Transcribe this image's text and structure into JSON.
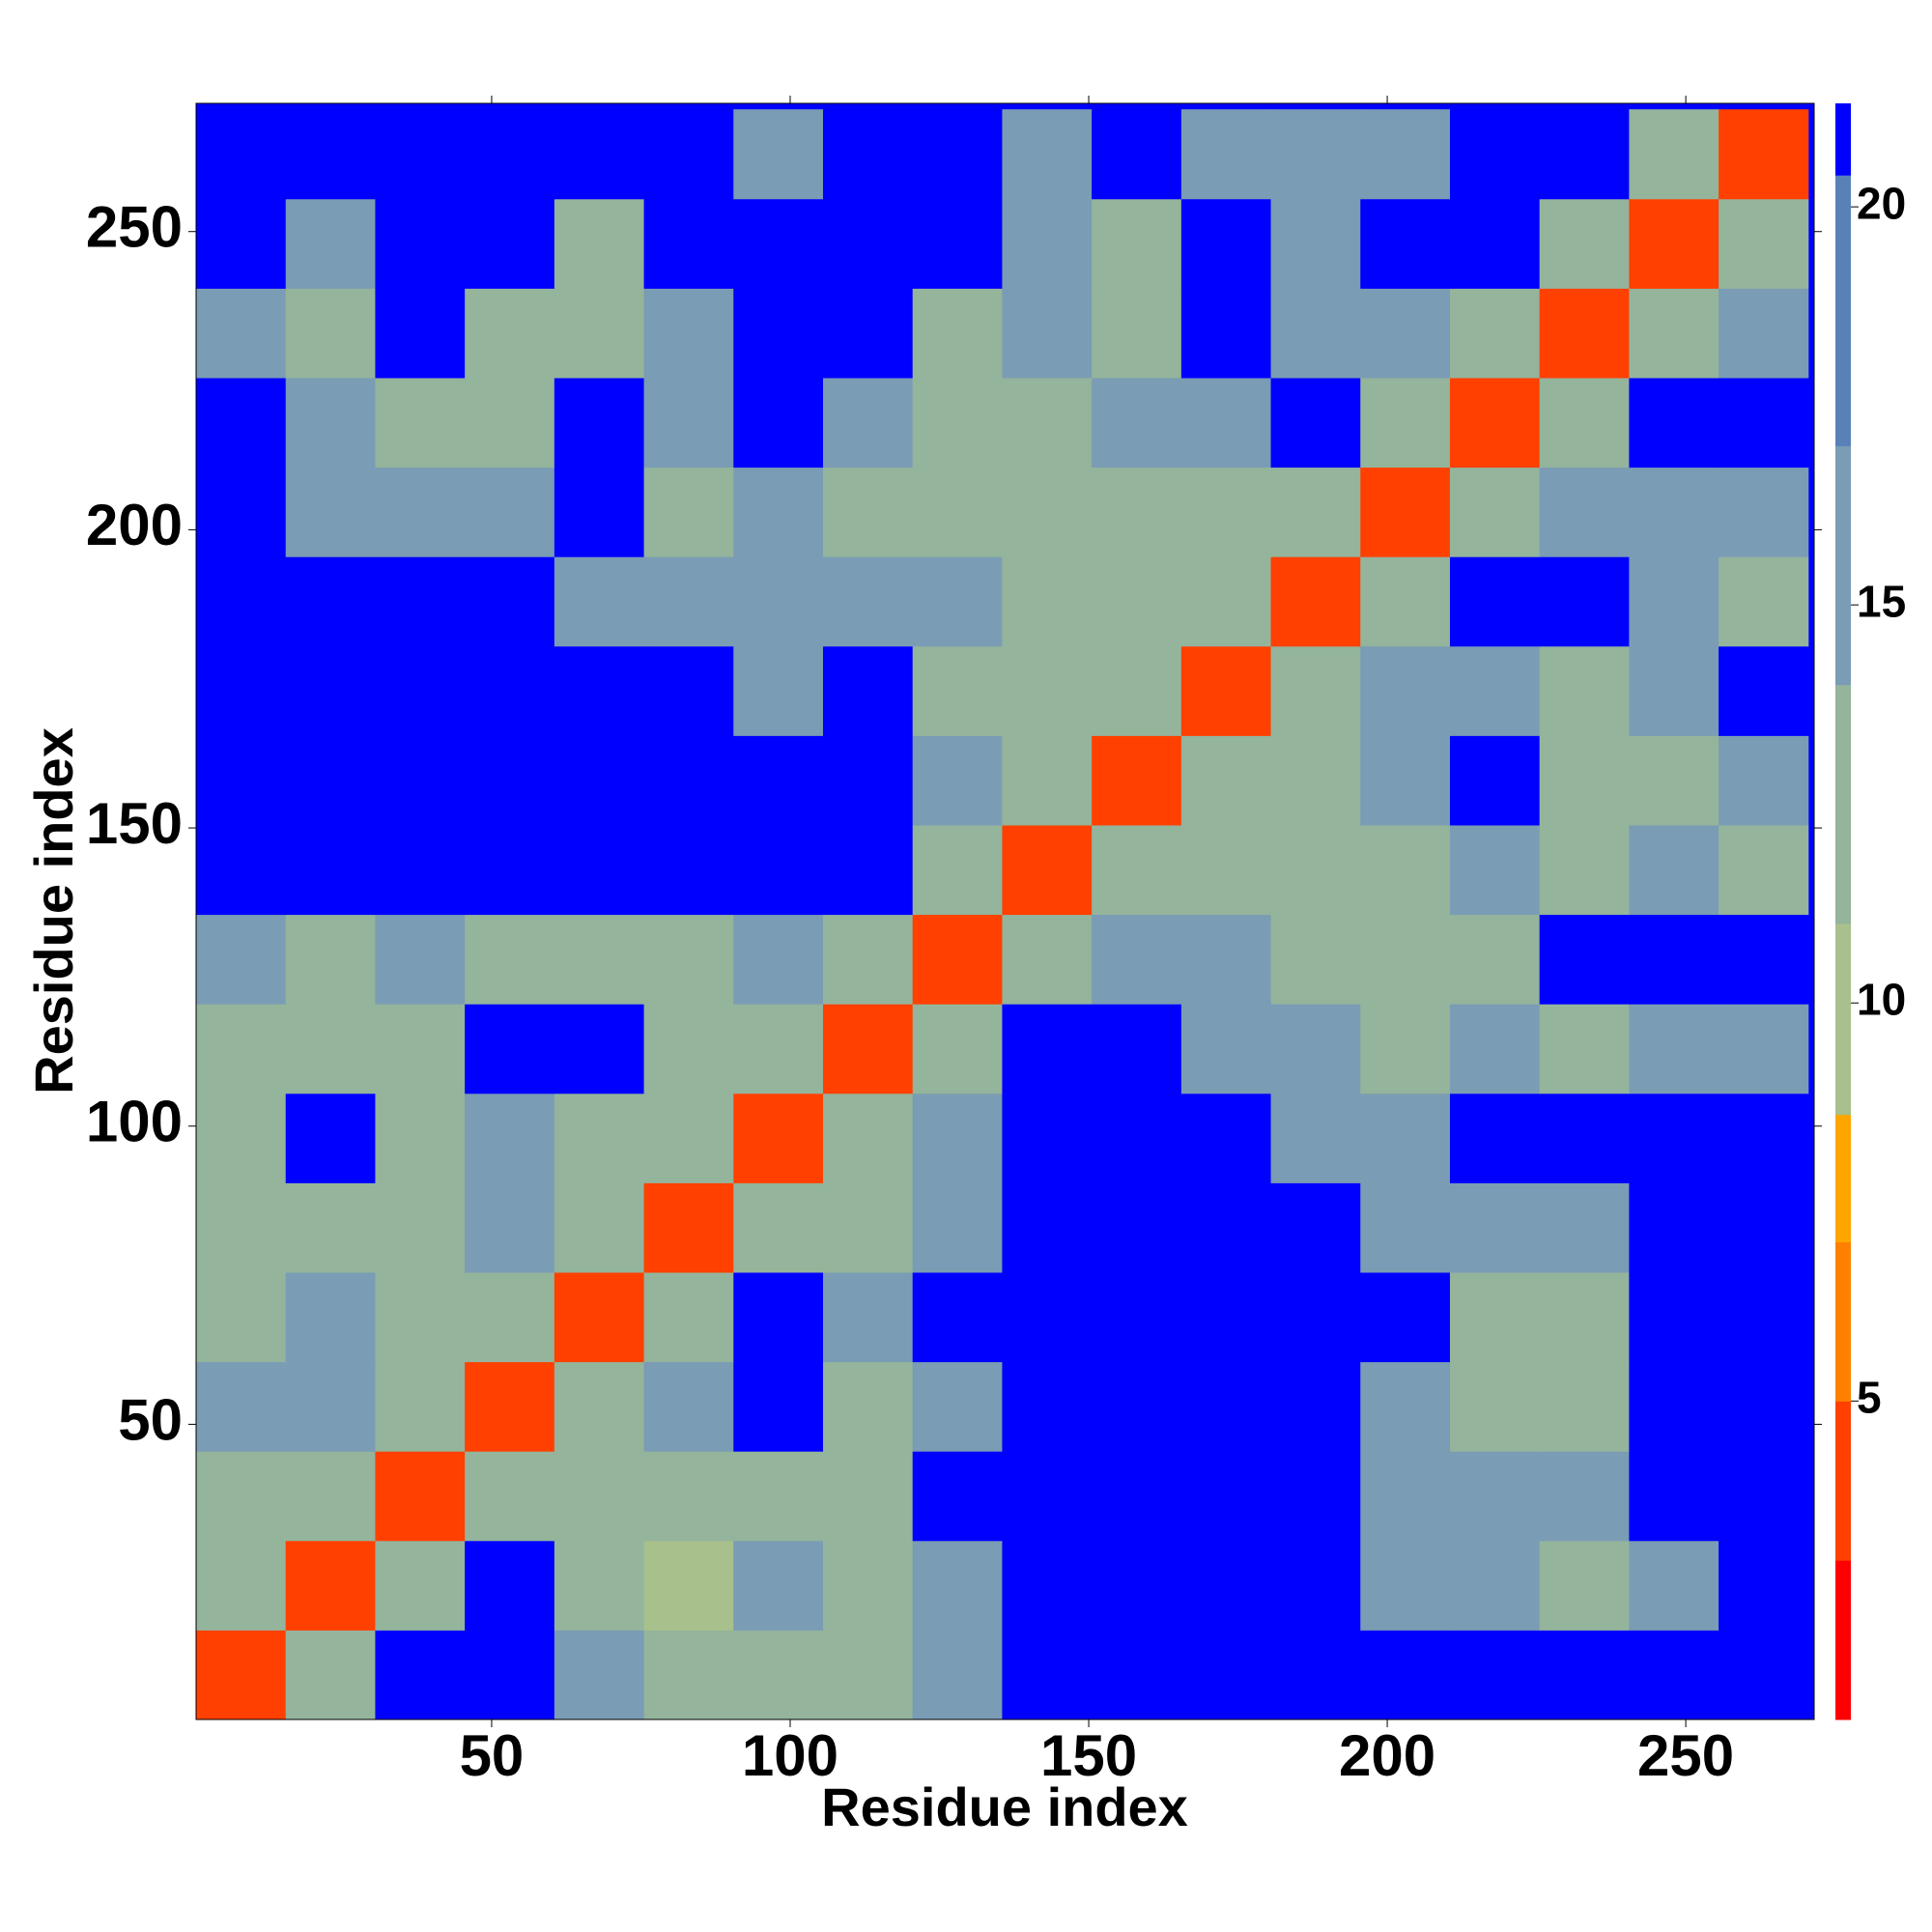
{
  "chart_data": {
    "type": "heatmap",
    "xlabel": "Residue index",
    "ylabel": "Residue index",
    "x_bins": [
      0.5,
      15.5,
      30.5,
      45.5,
      60.5,
      75.5,
      90.5,
      105.5,
      120.5,
      135.5,
      150.5,
      165.5,
      180.5,
      195.5,
      210.5,
      225.5,
      240.5,
      255.5,
      270.5
    ],
    "y_bins": [
      0.5,
      15.5,
      30.5,
      45.5,
      60.5,
      75.5,
      90.5,
      105.5,
      120.5,
      135.5,
      150.5,
      165.5,
      180.5,
      195.5,
      210.5,
      225.5,
      240.5,
      255.5,
      270.5
    ],
    "values": [
      [
        3,
        12,
        21,
        21,
        14,
        12,
        13,
        12,
        14,
        21,
        21,
        21,
        21,
        21,
        21,
        21,
        21,
        21
      ],
      [
        12,
        3,
        12,
        21,
        13,
        10,
        14,
        13,
        15,
        21,
        21,
        21,
        21,
        16,
        15,
        12,
        15,
        21
      ],
      [
        13,
        12,
        3,
        12,
        13,
        12,
        12,
        12,
        21,
        21,
        21,
        21,
        21,
        15,
        14,
        16,
        21,
        21
      ],
      [
        14,
        15,
        12,
        3,
        12,
        14,
        21,
        13,
        16,
        21,
        21,
        21,
        21,
        14,
        12,
        13,
        21,
        21
      ],
      [
        13,
        14,
        12,
        12,
        3,
        12,
        21,
        14,
        21,
        21,
        21,
        21,
        21,
        21,
        13,
        13,
        21,
        21
      ],
      [
        11,
        11,
        12,
        14,
        12,
        3,
        12,
        13,
        14,
        21,
        21,
        21,
        21,
        16,
        14,
        14,
        21,
        21
      ],
      [
        12,
        21,
        12,
        14,
        13,
        12,
        3,
        12,
        14,
        21,
        21,
        21,
        15,
        16,
        21,
        21,
        21,
        21
      ],
      [
        13,
        13,
        12,
        21,
        21,
        12,
        12,
        3,
        12,
        21,
        21,
        16,
        14,
        12,
        14,
        13,
        14,
        15
      ],
      [
        14,
        11,
        14,
        13,
        13,
        13,
        14,
        12,
        3,
        12,
        14,
        14,
        13,
        11,
        13,
        21,
        21,
        21
      ],
      [
        21,
        21,
        21,
        21,
        21,
        21,
        21,
        21,
        12,
        3,
        12,
        12,
        13,
        12,
        14,
        13,
        14,
        13
      ],
      [
        21,
        21,
        21,
        21,
        21,
        21,
        21,
        21,
        14,
        12,
        3,
        12,
        13,
        14,
        21,
        13,
        13,
        15
      ],
      [
        21,
        21,
        21,
        21,
        21,
        21,
        16,
        21,
        12,
        12,
        12,
        3,
        12,
        14,
        16,
        13,
        14,
        21
      ],
      [
        21,
        21,
        21,
        21,
        16,
        16,
        14,
        14,
        14,
        13,
        13,
        12,
        3,
        12,
        21,
        21,
        14,
        13
      ],
      [
        21,
        14,
        14,
        15,
        21,
        13,
        14,
        12,
        12,
        12,
        13,
        13,
        12,
        3,
        12,
        14,
        14,
        14
      ],
      [
        21,
        15,
        13,
        12,
        21,
        16,
        21,
        14,
        13,
        12,
        15,
        14,
        21,
        12,
        3,
        12,
        21,
        21
      ],
      [
        16,
        13,
        21,
        13,
        12,
        14,
        21,
        21,
        13,
        14,
        13,
        21,
        15,
        14,
        12,
        3,
        12,
        14
      ],
      [
        21,
        14,
        21,
        21,
        13,
        21,
        21,
        21,
        21,
        14,
        13,
        21,
        14,
        21,
        21,
        12,
        3,
        12
      ],
      [
        21,
        21,
        21,
        21,
        21,
        21,
        16,
        21,
        21,
        14,
        21,
        14,
        14,
        15,
        21,
        21,
        12,
        3
      ]
    ],
    "xlim": [
      0.5,
      271.5
    ],
    "ylim": [
      0.5,
      271.5
    ],
    "xticks": [
      50,
      100,
      150,
      200,
      250
    ],
    "yticks": [
      50,
      100,
      150,
      200,
      250
    ],
    "colorbar": {
      "lim": [
        1,
        21.3
      ],
      "ticks": [
        5,
        10,
        15,
        20
      ],
      "bounds": [
        1,
        3,
        5,
        7,
        8.6,
        11,
        14,
        17,
        20.4,
        21.3
      ],
      "colors": [
        "#ff0000",
        "#ff4000",
        "#ff8000",
        "#ffa500",
        "#a8c08c",
        "#94b49c",
        "#7a9cb4",
        "#5a80b8",
        "#0000ff"
      ]
    }
  }
}
